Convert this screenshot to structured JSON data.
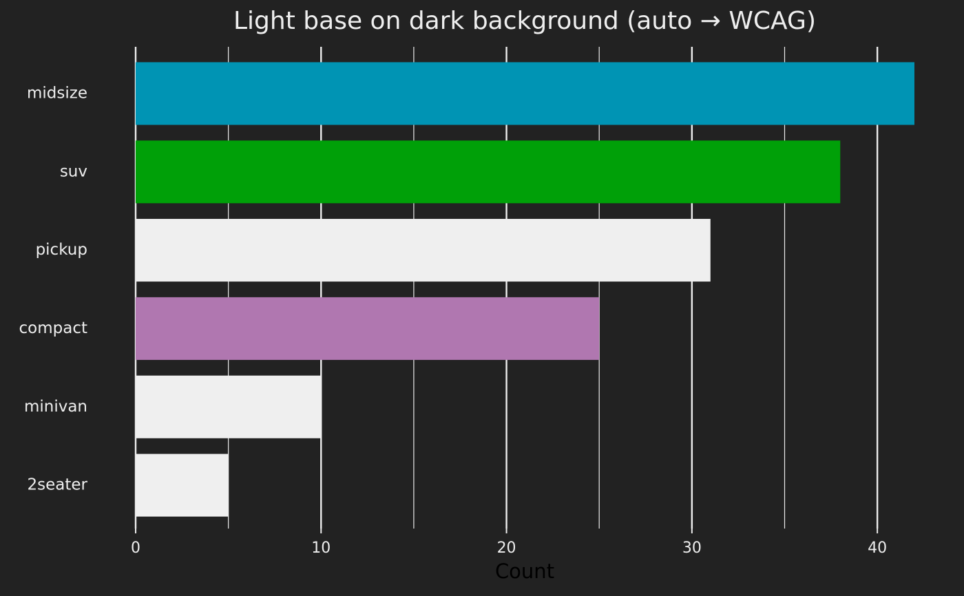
{
  "chart_data": {
    "type": "bar",
    "orientation": "horizontal",
    "title": "Light base on dark background (auto → WCAG)",
    "x_label": "Count",
    "categories": [
      "midsize",
      "suv",
      "pickup",
      "compact",
      "minivan",
      "2seater"
    ],
    "values": [
      42,
      38,
      31,
      25,
      10,
      5
    ],
    "colors": [
      "#0094b4",
      "#00a008",
      "#efefef",
      "#b077b0",
      "#efefef",
      "#efefef"
    ],
    "xlim": [
      0,
      42
    ],
    "xticks": [
      0,
      10,
      20,
      30,
      40
    ],
    "xminor": [
      5,
      15,
      25,
      35
    ],
    "grid": true
  }
}
